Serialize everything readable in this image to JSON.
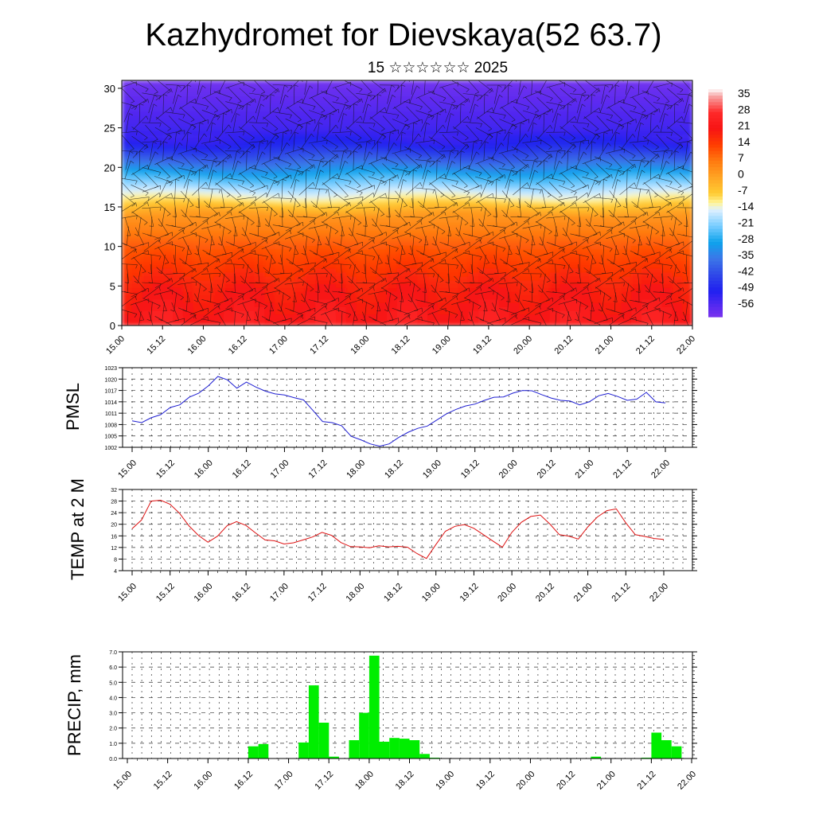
{
  "title": "Kazhydromet for Dievskaya(52 63.7)",
  "subtitle": "15 ☆☆☆☆☆☆ 2025",
  "time_labels": [
    "15.00",
    "15.12",
    "16.00",
    "16.12",
    "17.00",
    "17.12",
    "18.00",
    "18.12",
    "19.00",
    "19.12",
    "20.00",
    "20.12",
    "21.00",
    "21.12",
    "22.00"
  ],
  "chart_data": [
    {
      "type": "heatmap",
      "title": "Kazhydromet for Dievskaya(52 63.7)",
      "subtitle": "15 ☆☆☆☆☆☆ 2025",
      "xlabel": "",
      "ylabel": "",
      "ylim": [
        0,
        31
      ],
      "yticks": [
        0,
        5,
        10,
        15,
        20,
        25,
        30
      ],
      "colorbar": {
        "labels": [
          "35",
          "28",
          "21",
          "14",
          "7",
          "0",
          "-7",
          "-14",
          "-21",
          "-28",
          "-35",
          "-42",
          "-49",
          "-56"
        ],
        "range": [
          -60,
          38
        ],
        "stops": [
          {
            "v": 38,
            "c": "#ffffff"
          },
          {
            "v": 35,
            "c": "#f7a6a6"
          },
          {
            "v": 28,
            "c": "#ff2a2a"
          },
          {
            "v": 21,
            "c": "#f71414"
          },
          {
            "v": 14,
            "c": "#ff3d00"
          },
          {
            "v": 7,
            "c": "#ff7a10"
          },
          {
            "v": 0,
            "c": "#ffa424"
          },
          {
            "v": -7,
            "c": "#ffcc33"
          },
          {
            "v": -11,
            "c": "#fff59a"
          },
          {
            "v": -14,
            "c": "#dff1ff"
          },
          {
            "v": -21,
            "c": "#77ccff"
          },
          {
            "v": -28,
            "c": "#0ea3ec"
          },
          {
            "v": -35,
            "c": "#3c76e8"
          },
          {
            "v": -42,
            "c": "#2f48e8"
          },
          {
            "v": -49,
            "c": "#2020f0"
          },
          {
            "v": -56,
            "c": "#5a2af0"
          },
          {
            "v": -60,
            "c": "#7a34ee"
          }
        ]
      },
      "profile": {
        "heights": [
          0,
          5,
          10,
          14,
          16,
          19,
          21,
          23,
          25,
          27,
          29,
          31
        ],
        "values": [
          24,
          19,
          11,
          2,
          -10,
          -26,
          -38,
          -49,
          -53,
          -55,
          -57,
          -59
        ]
      }
    },
    {
      "type": "line",
      "ylabel": "PMSL",
      "ylim": [
        1002,
        1023
      ],
      "yticks": [
        1002,
        1005,
        1008,
        1011,
        1014,
        1017,
        1020,
        1023
      ],
      "color": "#1f1fd2",
      "x": [
        0,
        1,
        2,
        3,
        4,
        5,
        6,
        7,
        8,
        9,
        10,
        11,
        12,
        13,
        14,
        15,
        16,
        17,
        18,
        19,
        20,
        21,
        22,
        23,
        24,
        25,
        26,
        27,
        28,
        29,
        30,
        31,
        32,
        33,
        34,
        35,
        36,
        37,
        38,
        39,
        40,
        41,
        42,
        43,
        44,
        45,
        46,
        47,
        48,
        49,
        50,
        51,
        52,
        53,
        54,
        55,
        56
      ],
      "values": [
        1009,
        1008.5,
        1009.8,
        1010.6,
        1012.5,
        1013.2,
        1015.2,
        1016.3,
        1018.2,
        1020.7,
        1019.8,
        1017.6,
        1019.2,
        1017.9,
        1016.8,
        1016.1,
        1015.8,
        1015.1,
        1014.5,
        1011.7,
        1008.8,
        1008.5,
        1007.7,
        1004.9,
        1004,
        1002.9,
        1002.3,
        1002.9,
        1004.6,
        1006,
        1007,
        1007.6,
        1009.2,
        1010.8,
        1012,
        1012.9,
        1013.4,
        1014.4,
        1015.2,
        1015.3,
        1016.3,
        1017,
        1016.9,
        1015.9,
        1015,
        1014.4,
        1014.2,
        1013.2,
        1014,
        1015.6,
        1016.2,
        1015.4,
        1014.4,
        1014.7,
        1016.5,
        1014,
        1013.7
      ]
    },
    {
      "type": "line",
      "ylabel": "TEMP at 2 M",
      "ylim": [
        4,
        32
      ],
      "yticks": [
        4,
        8,
        12,
        16,
        20,
        24,
        28,
        32
      ],
      "color": "#dd1111",
      "x": [
        0,
        1,
        2,
        3,
        4,
        5,
        6,
        7,
        8,
        9,
        10,
        11,
        12,
        13,
        14,
        15,
        16,
        17,
        18,
        19,
        20,
        21,
        22,
        23,
        24,
        25,
        26,
        27,
        28,
        29,
        30,
        31,
        32,
        33,
        34,
        35,
        36,
        37,
        38,
        39,
        40,
        41,
        42,
        43,
        44,
        45,
        46,
        47,
        48,
        49,
        50,
        51,
        52,
        53,
        54,
        55,
        56
      ],
      "values": [
        18.5,
        21.5,
        28,
        28.3,
        26.9,
        23.8,
        19.4,
        16.1,
        13.8,
        15.9,
        19.5,
        20.9,
        19.6,
        17,
        14.6,
        14.3,
        13.2,
        13.6,
        14.6,
        15.6,
        17.2,
        16.2,
        13.7,
        12.3,
        12.2,
        11.9,
        12.6,
        12.2,
        12.4,
        12.1,
        9.9,
        8.2,
        13,
        17.6,
        19.3,
        19.9,
        18.6,
        16.4,
        14.2,
        12.1,
        17.2,
        20.7,
        22.7,
        23.2,
        20.1,
        16.4,
        15.9,
        14.9,
        19.1,
        22.5,
        24.7,
        25.3,
        20.5,
        16.4,
        15.8,
        15.1,
        14.8
      ]
    },
    {
      "type": "bar",
      "ylabel": "PRECIP, mm",
      "ylim": [
        0,
        7
      ],
      "yticks": [
        "0.0",
        "1.0",
        "2.0",
        "3.0",
        "4.0",
        "5.0",
        "6.0",
        "7.0"
      ],
      "color": "#00ee00",
      "x": [
        0,
        1,
        2,
        3,
        4,
        5,
        6,
        7,
        8,
        9,
        10,
        11,
        12,
        13,
        14,
        15,
        16,
        17,
        18,
        19,
        20,
        21,
        22,
        23,
        24,
        25,
        26,
        27,
        28,
        29,
        30,
        31,
        32,
        33,
        34,
        35,
        36,
        37,
        38,
        39,
        40,
        41,
        42,
        43,
        44,
        45,
        46,
        47,
        48,
        49,
        50,
        51,
        52,
        53,
        54,
        55
      ],
      "values": [
        0,
        0,
        0,
        0,
        0,
        0,
        0,
        0,
        0,
        0,
        0,
        0,
        0.8,
        0.95,
        0,
        0,
        0,
        1.05,
        4.8,
        2.35,
        0.12,
        0,
        1.2,
        3,
        6.75,
        1.1,
        1.35,
        1.3,
        1.2,
        0.3,
        0.05,
        0,
        0,
        0,
        0,
        0,
        0,
        0,
        0,
        0,
        0,
        0,
        0,
        0,
        0,
        0,
        0.12,
        0,
        0,
        0,
        0,
        0.05,
        1.7,
        1.2,
        0.8,
        0
      ]
    }
  ]
}
